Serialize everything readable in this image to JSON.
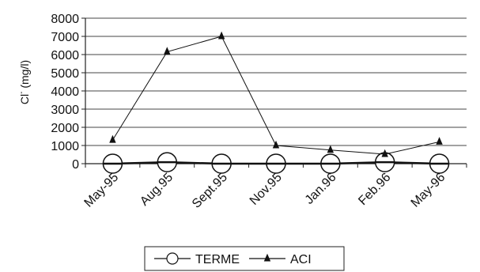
{
  "chart_data": {
    "type": "line",
    "title": "",
    "xlabel": "",
    "ylabel": "Cl- (mg/l)",
    "ylabel_base": "Cl",
    "ylabel_sup": "-",
    "ylabel_rest": " (mg/l)",
    "ylim": [
      0,
      8000
    ],
    "yticks": [
      "0",
      "1000",
      "2000",
      "3000",
      "4000",
      "5000",
      "6000",
      "7000",
      "8000"
    ],
    "categories": [
      "May-95",
      "Aug.95",
      "Sept.95",
      "Nov.95",
      "Jan.96",
      "Feb.96",
      "May-96"
    ],
    "grid": true,
    "legend_position": "bottom",
    "series": [
      {
        "name": "TERME",
        "marker": "circle",
        "values": [
          0,
          80,
          0,
          0,
          0,
          80,
          0
        ]
      },
      {
        "name": "ACI",
        "marker": "triangle",
        "values": [
          1300,
          6150,
          7000,
          1000,
          750,
          520,
          1200
        ]
      }
    ]
  }
}
